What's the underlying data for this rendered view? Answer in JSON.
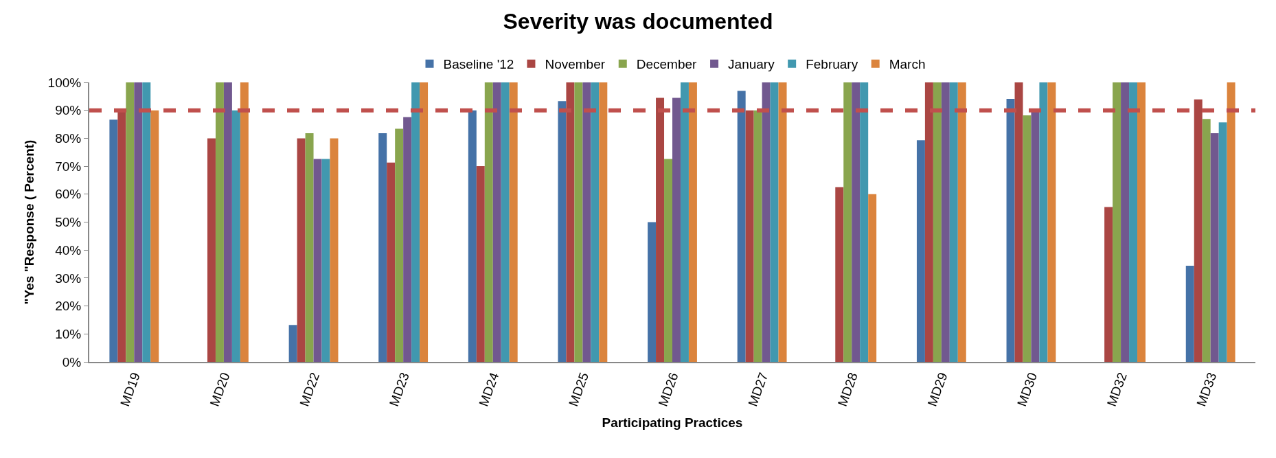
{
  "chart_data": {
    "type": "bar",
    "title": "Severity was documented",
    "xlabel": "Participating Practices",
    "ylabel": "\"Yes \"Response ( Percent)",
    "categories": [
      "MD19",
      "MD20",
      "MD22",
      "MD23",
      "MD24",
      "MD25",
      "MD26",
      "MD27",
      "MD28",
      "MD29",
      "MD30",
      "MD32",
      "MD33"
    ],
    "series": [
      {
        "name": "Baseline '12",
        "color": "#4572a7",
        "values": [
          86.7,
          null,
          13.2,
          81.8,
          90,
          93.3,
          50,
          97,
          null,
          79.3,
          94.1,
          null,
          34.4
        ]
      },
      {
        "name": "November",
        "color": "#aa4643",
        "values": [
          90,
          80,
          80,
          71.3,
          70,
          100,
          94.5,
          90,
          62.5,
          100,
          100,
          55.4,
          93.9
        ]
      },
      {
        "name": "December",
        "color": "#89a54e",
        "values": [
          100,
          100,
          81.8,
          83.4,
          100,
          100,
          72.6,
          90,
          100,
          100,
          88.2,
          100,
          86.9
        ]
      },
      {
        "name": "January",
        "color": "#71588f",
        "values": [
          100,
          100,
          72.6,
          87.6,
          100,
          100,
          94.5,
          100,
          100,
          100,
          90,
          100,
          81.8
        ]
      },
      {
        "name": "February",
        "color": "#4198af",
        "values": [
          100,
          90,
          72.6,
          100,
          100,
          100,
          100,
          100,
          100,
          100,
          100,
          100,
          85.7
        ]
      },
      {
        "name": "March",
        "color": "#db843d",
        "values": [
          90,
          100,
          80,
          100,
          100,
          100,
          100,
          100,
          60,
          100,
          100,
          100,
          100
        ]
      }
    ],
    "ylim": [
      0,
      100
    ],
    "yticks": [
      {
        "value": 0,
        "label": "0%"
      },
      {
        "value": 10,
        "label": "10%"
      },
      {
        "value": 20,
        "label": "20%"
      },
      {
        "value": 30,
        "label": "30%"
      },
      {
        "value": 40,
        "label": "40%"
      },
      {
        "value": 50,
        "label": "50%"
      },
      {
        "value": 60,
        "label": "60%"
      },
      {
        "value": 70,
        "label": "70%"
      },
      {
        "value": 80,
        "label": "80%"
      },
      {
        "value": 90,
        "label": "90%"
      },
      {
        "value": 100,
        "label": "100%"
      }
    ],
    "ref_lines": [
      {
        "axis": "y",
        "value": 90,
        "color": "#c0504d",
        "line_style": "dashed"
      }
    ],
    "legend": "top"
  }
}
